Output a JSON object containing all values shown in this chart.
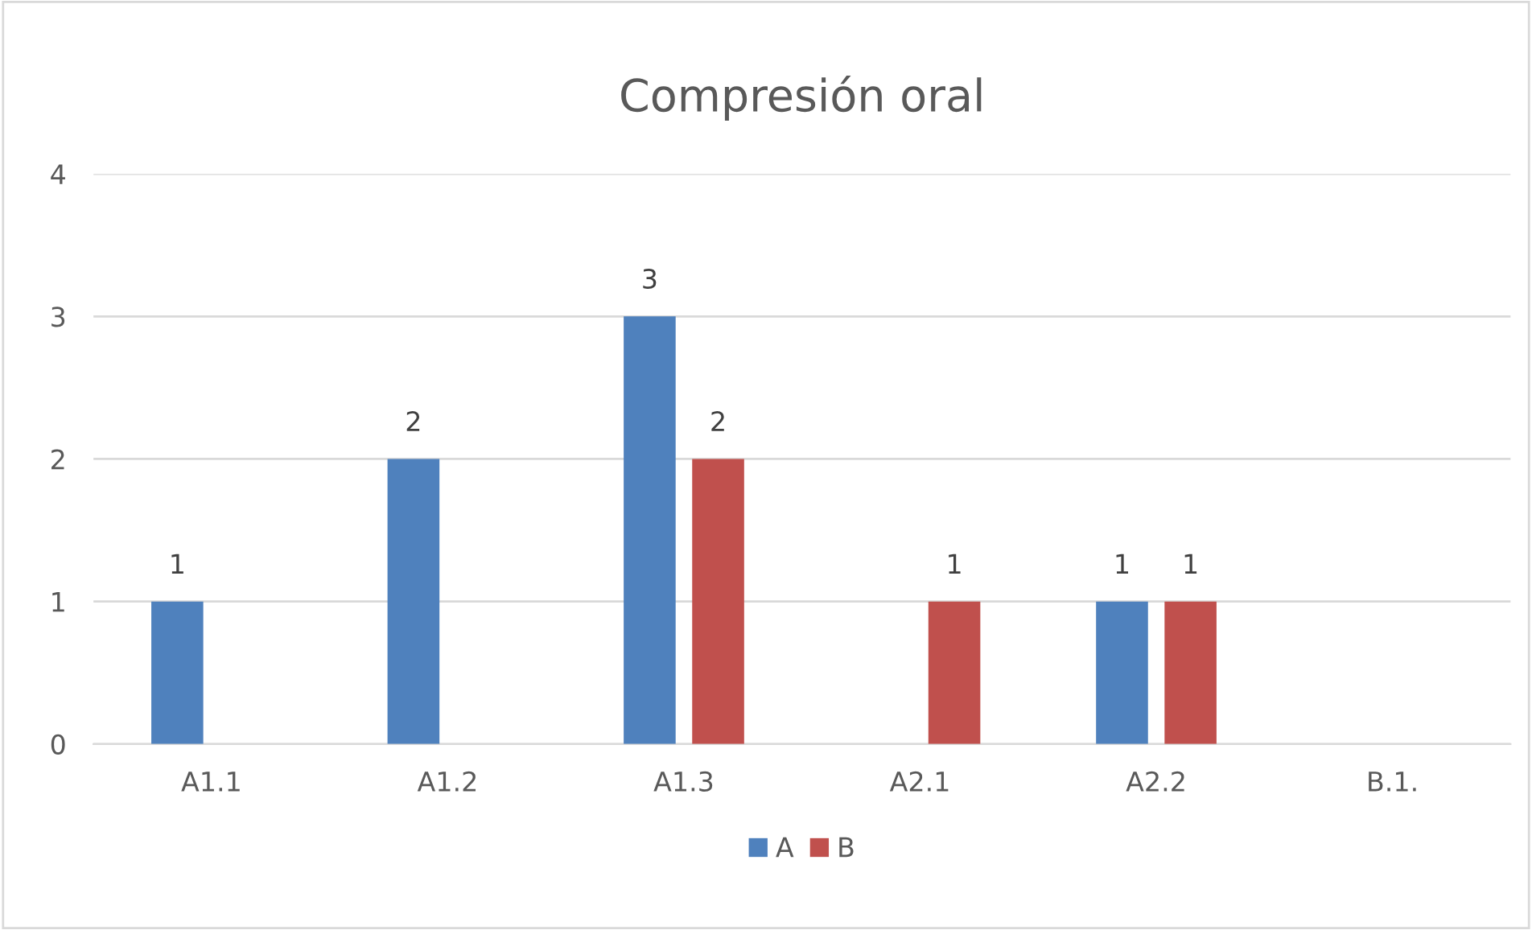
{
  "chart_data": {
    "type": "bar",
    "title": "Compresión oral",
    "categories": [
      "A1.1",
      "A1.2",
      "A1.3",
      "A2.1",
      "A2.2",
      "B.1."
    ],
    "series": [
      {
        "name": "A",
        "color": "#4f81bd",
        "values": [
          1,
          2,
          3,
          null,
          1,
          null
        ]
      },
      {
        "name": "B",
        "color": "#c0504d",
        "values": [
          null,
          null,
          2,
          1,
          1,
          null
        ]
      }
    ],
    "ylim": [
      0,
      4
    ],
    "yticks": [
      0,
      1,
      2,
      3,
      4
    ],
    "grid": "y",
    "legend": "bottom",
    "data_labels": true
  }
}
